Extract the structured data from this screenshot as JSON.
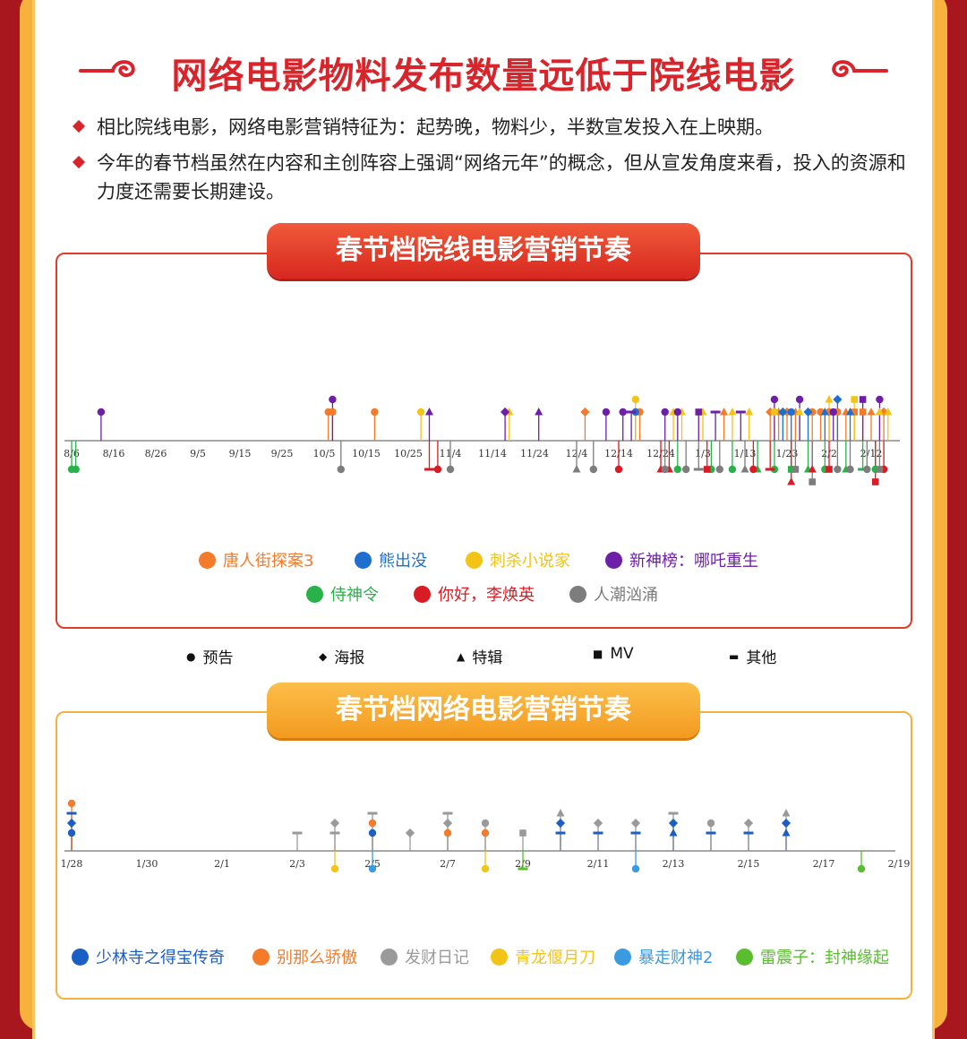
{
  "title": "网络电影物料发布数量远低于院线电影",
  "bullets": [
    "相比院线电影，网络电影营销特征为：起势晚，物料少，半数宣发投入在上映期。",
    "今年的春节档虽然在内容和主创阵容上强调“网络元年”的概念，但从宣发角度来看，投入的资源和力度还需要长期建设。"
  ],
  "colors": {
    "accent_red": "#d8252c",
    "frame_orange": "#f6b23c",
    "tang": "#f47b2a",
    "xiong": "#1f6fd1",
    "cisha": "#f2c418",
    "nezha": "#6d1fa8",
    "shishen": "#2ab24a",
    "nihao": "#d81b24",
    "renchao": "#7d7d7d",
    "shaolin": "#1c5fc4",
    "bienme": "#f47b2a",
    "facai": "#9a9a9a",
    "qinglong": "#f2c418",
    "baozou": "#3a9be0",
    "leizhenzi": "#59bd2f"
  },
  "markers": {
    "trailer": "预告",
    "poster": "海报",
    "featurette": "特辑",
    "mv": "MV",
    "other": "其他"
  },
  "chart_data": [
    {
      "type": "scatter",
      "title": "春节档院线电影营销节奏",
      "x_ticks": [
        "8/6",
        "8/16",
        "8/26",
        "9/5",
        "9/15",
        "9/25",
        "10/5",
        "10/15",
        "10/25",
        "11/4",
        "11/14",
        "11/24",
        "12/4",
        "12/14",
        "12/24",
        "1/3",
        "1/13",
        "1/23",
        "2/2",
        "2/12"
      ],
      "series": [
        {
          "name": "唐人街探案3",
          "color": "#f47b2a",
          "side": "up",
          "events": [
            [
              "10/6",
              "trailer"
            ],
            [
              "10/7",
              "trailer"
            ],
            [
              "10/17",
              "trailer"
            ],
            [
              "12/6",
              "poster"
            ],
            [
              "12/19",
              "trailer"
            ],
            [
              "1/8",
              "featurette"
            ],
            [
              "1/19",
              "poster"
            ],
            [
              "1/21",
              "featurette"
            ],
            [
              "1/23",
              "poster"
            ],
            [
              "1/25",
              "featurette"
            ],
            [
              "1/29",
              "trailer"
            ],
            [
              "1/31",
              "trailer"
            ],
            [
              "2/2",
              "trailer"
            ],
            [
              "2/4",
              "trailer"
            ],
            [
              "2/6",
              "featurette"
            ],
            [
              "2/8",
              "mv"
            ],
            [
              "2/10",
              "mv"
            ],
            [
              "2/12",
              "featurette"
            ],
            [
              "2/15",
              "poster"
            ]
          ]
        },
        {
          "name": "熊出没",
          "color": "#1f6fd1",
          "side": "up",
          "events": [
            [
              "12/18",
              "trailer"
            ],
            [
              "1/22",
              "poster"
            ],
            [
              "1/24",
              "trailer"
            ],
            [
              "1/28",
              "poster"
            ],
            [
              "2/1",
              "featurette"
            ],
            [
              "2/4",
              "poster"
            ],
            [
              "2/7",
              "featurette"
            ]
          ]
        },
        {
          "name": "刺杀小说家",
          "color": "#f2c418",
          "side": "up",
          "events": [
            [
              "10/28",
              "trailer"
            ],
            [
              "11/18",
              "featurette"
            ],
            [
              "12/18",
              "trailer"
            ],
            [
              "12/27",
              "featurette"
            ],
            [
              "12/29",
              "featurette"
            ],
            [
              "1/3",
              "featurette"
            ],
            [
              "1/10",
              "featurette"
            ],
            [
              "1/14",
              "featurette"
            ],
            [
              "1/20",
              "trailer"
            ],
            [
              "1/26",
              "featurette"
            ],
            [
              "2/2",
              "featurette"
            ],
            [
              "2/8",
              "mv"
            ],
            [
              "2/14",
              "featurette"
            ],
            [
              "2/16",
              "featurette"
            ]
          ]
        },
        {
          "name": "新神榜：哪吒重生",
          "color": "#6d1fa8",
          "side": "up",
          "events": [
            [
              "8/13",
              "trailer"
            ],
            [
              "10/7",
              "trailer"
            ],
            [
              "10/30",
              "featurette"
            ],
            [
              "11/17",
              "poster"
            ],
            [
              "11/25",
              "featurette"
            ],
            [
              "12/11",
              "trailer"
            ],
            [
              "12/15",
              "trailer"
            ],
            [
              "12/17",
              "other"
            ],
            [
              "12/25",
              "trailer"
            ],
            [
              "12/28",
              "trailer"
            ],
            [
              "1/2",
              "mv"
            ],
            [
              "1/6",
              "other"
            ],
            [
              "1/12",
              "other"
            ],
            [
              "1/20",
              "trailer"
            ],
            [
              "1/26",
              "trailer"
            ],
            [
              "2/3",
              "trailer"
            ],
            [
              "2/10",
              "mv"
            ],
            [
              "2/14",
              "trailer"
            ]
          ]
        },
        {
          "name": "侍神令",
          "color": "#2ab24a",
          "side": "down",
          "events": [
            [
              "8/6",
              "trailer"
            ],
            [
              "8/7",
              "trailer"
            ],
            [
              "12/28",
              "trailer"
            ],
            [
              "1/5",
              "trailer"
            ],
            [
              "1/10",
              "trailer"
            ],
            [
              "1/16",
              "featurette"
            ],
            [
              "1/20",
              "trailer"
            ],
            [
              "1/24",
              "mv"
            ],
            [
              "1/28",
              "featurette"
            ],
            [
              "2/1",
              "trailer"
            ],
            [
              "2/6",
              "featurette"
            ],
            [
              "2/10",
              "other"
            ],
            [
              "2/13",
              "trailer"
            ]
          ]
        },
        {
          "name": "你好，李焕英",
          "color": "#d81b24",
          "side": "down",
          "events": [
            [
              "10/30",
              "other"
            ],
            [
              "11/1",
              "trailer"
            ],
            [
              "12/14",
              "trailer"
            ],
            [
              "12/24",
              "featurette"
            ],
            [
              "12/26",
              "featurette"
            ],
            [
              "1/4",
              "mv"
            ],
            [
              "1/15",
              "trailer"
            ],
            [
              "1/19",
              "other"
            ],
            [
              "1/24",
              "featurette"
            ],
            [
              "1/29",
              "featurette"
            ],
            [
              "2/2",
              "mv"
            ],
            [
              "2/13",
              "mv"
            ],
            [
              "2/15",
              "trailer"
            ]
          ]
        },
        {
          "name": "人潮汹涌",
          "color": "#7d7d7d",
          "side": "down",
          "events": [
            [
              "10/9",
              "trailer"
            ],
            [
              "11/4",
              "trailer"
            ],
            [
              "12/4",
              "featurette"
            ],
            [
              "12/8",
              "trailer"
            ],
            [
              "12/25",
              "trailer"
            ],
            [
              "12/30",
              "trailer"
            ],
            [
              "1/2",
              "other"
            ],
            [
              "1/7",
              "trailer"
            ],
            [
              "1/13",
              "featurette"
            ],
            [
              "1/25",
              "mv"
            ],
            [
              "1/29",
              "mv"
            ],
            [
              "2/4",
              "trailer"
            ],
            [
              "2/7",
              "trailer"
            ],
            [
              "2/11",
              "trailer"
            ],
            [
              "2/14",
              "mv"
            ]
          ]
        }
      ]
    },
    {
      "type": "scatter",
      "title": "春节档网络电影营销节奏",
      "x_ticks": [
        "1/28",
        "1/30",
        "2/1",
        "2/3",
        "2/5",
        "2/7",
        "2/9",
        "2/11",
        "2/13",
        "2/15",
        "2/17",
        "2/19"
      ],
      "series": [
        {
          "name": "少林寺之得宝传奇",
          "color": "#1c5fc4",
          "side": "up",
          "events": [
            [
              "1/28",
              "trailer"
            ],
            [
              "1/28",
              "poster"
            ],
            [
              "1/28",
              "other"
            ],
            [
              "2/5",
              "trailer"
            ],
            [
              "2/10",
              "other"
            ],
            [
              "2/10",
              "poster"
            ],
            [
              "2/11",
              "other"
            ],
            [
              "2/12",
              "other"
            ],
            [
              "2/13",
              "featurette"
            ],
            [
              "2/13",
              "poster"
            ],
            [
              "2/14",
              "other"
            ],
            [
              "2/15",
              "other"
            ],
            [
              "2/16",
              "featurette"
            ],
            [
              "2/16",
              "poster"
            ]
          ]
        },
        {
          "name": "别那么骄傲",
          "color": "#f47b2a",
          "side": "up",
          "events": [
            [
              "1/28",
              "trailer"
            ],
            [
              "2/5",
              "trailer"
            ],
            [
              "2/7",
              "trailer"
            ],
            [
              "2/8",
              "trailer"
            ]
          ]
        },
        {
          "name": "发财日记",
          "color": "#9a9a9a",
          "side": "up",
          "events": [
            [
              "2/3",
              "other"
            ],
            [
              "2/4",
              "other"
            ],
            [
              "2/4",
              "poster"
            ],
            [
              "2/5",
              "other"
            ],
            [
              "2/6",
              "poster"
            ],
            [
              "2/7",
              "poster"
            ],
            [
              "2/7",
              "other"
            ],
            [
              "2/8",
              "trailer"
            ],
            [
              "2/9",
              "mv"
            ],
            [
              "2/10",
              "featurette"
            ],
            [
              "2/11",
              "poster"
            ],
            [
              "2/12",
              "poster"
            ],
            [
              "2/13",
              "other"
            ],
            [
              "2/14",
              "trailer"
            ],
            [
              "2/15",
              "poster"
            ],
            [
              "2/16",
              "featurette"
            ]
          ]
        },
        {
          "name": "青龙偃月刀",
          "color": "#f2c418",
          "side": "down",
          "events": [
            [
              "2/4",
              "trailer"
            ],
            [
              "2/8",
              "trailer"
            ]
          ]
        },
        {
          "name": "暴走财神2",
          "color": "#3a9be0",
          "side": "down",
          "events": [
            [
              "2/5",
              "trailer"
            ],
            [
              "2/12",
              "trailer"
            ]
          ]
        },
        {
          "name": "雷震子：封神缘起",
          "color": "#59bd2f",
          "side": "down",
          "events": [
            [
              "2/9",
              "other"
            ],
            [
              "2/18",
              "trailer"
            ]
          ]
        }
      ]
    }
  ]
}
